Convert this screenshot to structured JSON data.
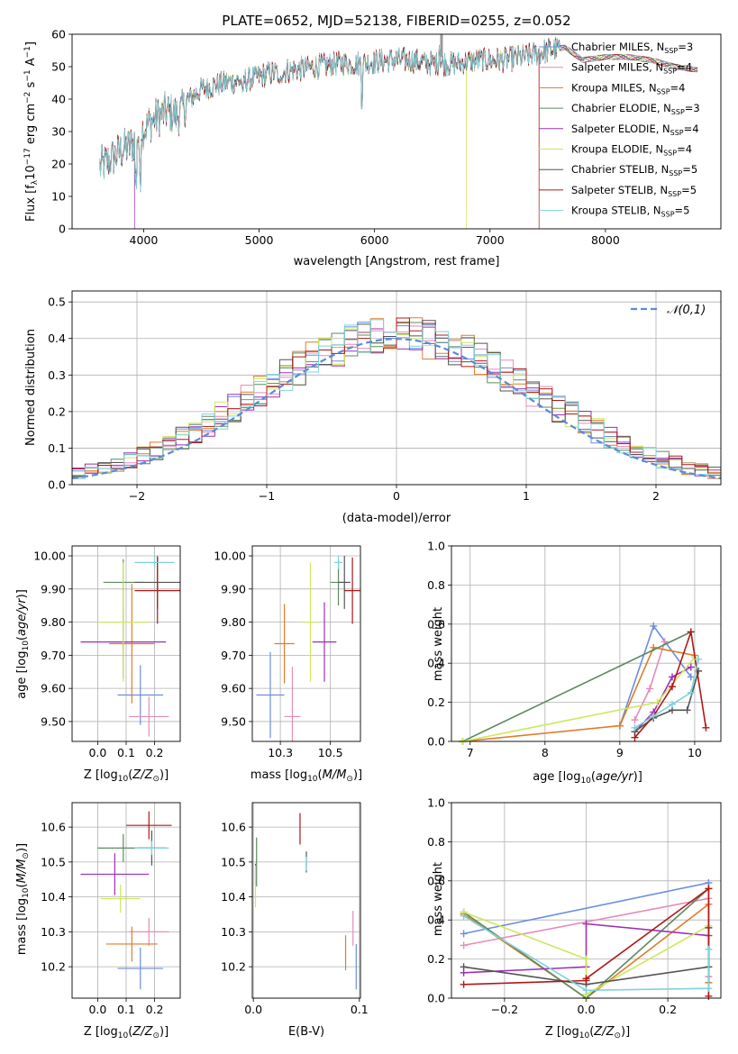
{
  "figure": {
    "title": "PLATE=0652, MJD=52138, FIBERID=0255, z=0.052"
  },
  "colors": {
    "Chabrier MILES": "#6a8fdc",
    "Salpeter MILES": "#e58bb9",
    "Kroupa MILES": "#e07b2a",
    "Chabrier ELODIE": "#5c8a60",
    "Salpeter ELODIE": "#9b30b8",
    "Kroupa ELODIE": "#cde85e",
    "Chabrier STELIB": "#555555",
    "Salpeter STELIB": "#b01818",
    "Kroupa STELIB": "#7fd2dc"
  },
  "chart_data": [
    {
      "id": "spectrum",
      "type": "line",
      "title": "PLATE=0652, MJD=52138, FIBERID=0255, z=0.052",
      "xlabel": "wavelength [Angstrom, rest frame]",
      "ylabel": "Flux [fλ10⁻¹⁷ erg cm⁻² s⁻¹ A⁻¹]",
      "xlim": [
        3380,
        9000
      ],
      "ylim": [
        0,
        60
      ],
      "xticks": [
        4000,
        5000,
        6000,
        7000,
        8000
      ],
      "yticks": [
        0,
        10,
        20,
        30,
        40,
        50,
        60
      ],
      "grid": false,
      "legend": "top-right",
      "legend_labels": [
        "Chabrier MILES, N_SSP=3",
        "Salpeter MILES, N_SSP=4",
        "Kroupa MILES, N_SSP=4",
        "Chabrier ELODIE, N_SSP=3",
        "Salpeter ELODIE, N_SSP=4",
        "Kroupa ELODIE, N_SSP=4",
        "Chabrier STELIB, N_SSP=5",
        "Salpeter STELIB, N_SSP=5",
        "Kroupa STELIB, N_SSP=5"
      ],
      "continuum": {
        "x": [
          3620,
          3700,
          3800,
          3900,
          4000,
          4100,
          4200,
          4300,
          4400,
          4500,
          4700,
          4900,
          5100,
          5300,
          5500,
          5700,
          5900,
          6100,
          6300,
          6500,
          6700,
          6900,
          7100,
          7300,
          7500,
          7650,
          7800,
          8000,
          8200,
          8400,
          8600,
          8800
        ],
        "y": [
          19,
          21,
          24,
          26,
          31,
          34,
          36,
          35,
          40,
          43,
          45,
          46,
          48,
          49,
          50,
          51,
          51,
          52,
          52,
          51,
          51,
          52,
          52,
          53,
          55,
          56,
          52,
          53,
          53,
          52,
          50,
          49
        ]
      },
      "drops": [
        {
          "series": "Salpeter ELODIE",
          "x": 3920,
          "y": 0
        },
        {
          "series": "Kroupa ELODIE",
          "x": 6790,
          "y": 0
        },
        {
          "series": "Salpeter STELIB",
          "x": 7420,
          "y": 0
        }
      ]
    },
    {
      "id": "residuals",
      "type": "histogram",
      "xlabel": "(data-model)/error",
      "ylabel": "Normed distribution",
      "xlim": [
        -2.5,
        2.5
      ],
      "ylim": [
        0,
        0.53
      ],
      "xticks": [
        -2,
        -1,
        0,
        1,
        2
      ],
      "yticks": [
        0.0,
        0.1,
        0.2,
        0.3,
        0.4,
        0.5
      ],
      "grid": true,
      "legend": "top-right",
      "reference_label": "𝒩(0,1)",
      "reference": "normal(0,1)"
    },
    {
      "id": "age_vs_Z",
      "type": "errorbar",
      "xlabel": "Z [log10(Z/Z☉)]",
      "ylabel": "age  [log10(age/yr)]",
      "xlim": [
        -0.09,
        0.29
      ],
      "ylim": [
        9.44,
        10.03
      ],
      "xticks": [
        0.0,
        0.1,
        0.2
      ],
      "yticks": [
        9.5,
        9.6,
        9.7,
        9.8,
        9.9,
        10.0
      ],
      "grid": true,
      "points": [
        {
          "series": "Chabrier MILES",
          "x": 0.15,
          "xerr": 0.08,
          "y": 9.58,
          "yerr": 0.09
        },
        {
          "series": "Salpeter MILES",
          "x": 0.18,
          "xerr": 0.07,
          "y": 9.515,
          "yerr": 0.06
        },
        {
          "series": "Kroupa MILES",
          "x": 0.12,
          "xerr": 0.08,
          "y": 9.735,
          "yerr": 0.18
        },
        {
          "series": "Chabrier ELODIE",
          "x": 0.09,
          "xerr": 0.07,
          "y": 9.92,
          "yerr": 0.07
        },
        {
          "series": "Salpeter ELODIE",
          "x": 0.09,
          "xerr": 0.15,
          "y": 9.74,
          "yerr": 0.11
        },
        {
          "series": "Kroupa ELODIE",
          "x": 0.09,
          "xerr": 0.09,
          "y": 9.8,
          "yerr": 0.18
        },
        {
          "series": "Chabrier STELIB",
          "x": 0.21,
          "xerr": 0.08,
          "y": 9.92,
          "yerr": 0.08
        },
        {
          "series": "Salpeter STELIB",
          "x": 0.21,
          "xerr": 0.08,
          "y": 9.895,
          "yerr": 0.1
        },
        {
          "series": "Kroupa STELIB",
          "x": 0.2,
          "xerr": 0.07,
          "y": 9.98,
          "yerr": 0.02
        }
      ]
    },
    {
      "id": "age_vs_mass",
      "type": "errorbar",
      "xlabel": "mass [log10(M/M☉)]",
      "ylabel": "",
      "xlim": [
        10.11,
        10.65
      ],
      "ylim": [
        9.44,
        10.03
      ],
      "xticks": [
        10.25,
        10.5
      ],
      "yticks": [
        9.5,
        9.6,
        9.7,
        9.8,
        9.9,
        10.0
      ],
      "grid": true,
      "points": [
        {
          "series": "Chabrier MILES",
          "x": 10.2,
          "xerr": 0.07,
          "y": 9.58,
          "yerr": 0.13
        },
        {
          "series": "Salpeter MILES",
          "x": 10.31,
          "xerr": 0.04,
          "y": 9.515,
          "yerr": 0.15
        },
        {
          "series": "Kroupa MILES",
          "x": 10.27,
          "xerr": 0.05,
          "y": 9.735,
          "yerr": 0.12
        },
        {
          "series": "Chabrier ELODIE",
          "x": 10.54,
          "xerr": 0.04,
          "y": 9.92,
          "yerr": 0.07
        },
        {
          "series": "Salpeter ELODIE",
          "x": 10.47,
          "xerr": 0.06,
          "y": 9.74,
          "yerr": 0.12
        },
        {
          "series": "Kroupa ELODIE",
          "x": 10.4,
          "xerr": 0.04,
          "y": 9.8,
          "yerr": 0.18
        },
        {
          "series": "Chabrier STELIB",
          "x": 10.57,
          "xerr": 0.03,
          "y": 9.92,
          "yerr": 0.08
        },
        {
          "series": "Salpeter STELIB",
          "x": 10.61,
          "xerr": 0.04,
          "y": 9.895,
          "yerr": 0.1
        },
        {
          "series": "Kroupa STELIB",
          "x": 10.54,
          "xerr": 0.02,
          "y": 9.98,
          "yerr": 0.02
        }
      ]
    },
    {
      "id": "mass_weight_vs_age",
      "type": "line",
      "xlabel": "age  [log10(age/yr)]",
      "ylabel": "mass weight",
      "xlim": [
        6.75,
        10.35
      ],
      "ylim": [
        0,
        1
      ],
      "xticks": [
        7,
        8,
        9,
        10
      ],
      "yticks": [
        0.0,
        0.2,
        0.4,
        0.6,
        0.8,
        1.0
      ],
      "grid": true,
      "series": [
        {
          "name": "Chabrier MILES",
          "x": [
            9.0,
            9.45,
            9.95
          ],
          "y": [
            0.08,
            0.59,
            0.33
          ]
        },
        {
          "name": "Salpeter MILES",
          "x": [
            9.2,
            9.4,
            9.6
          ],
          "y": [
            0.11,
            0.27,
            0.51
          ]
        },
        {
          "name": "Kroupa MILES",
          "x": [
            6.9,
            9.0,
            9.45,
            10.0
          ],
          "y": [
            0.0,
            0.08,
            0.48,
            0.44
          ]
        },
        {
          "name": "Chabrier ELODIE",
          "x": [
            6.9,
            9.95
          ],
          "y": [
            0.0,
            0.56
          ]
        },
        {
          "name": "Salpeter ELODIE",
          "x": [
            9.2,
            9.45,
            9.7,
            9.95
          ],
          "y": [
            0.05,
            0.15,
            0.33,
            0.38
          ]
        },
        {
          "name": "Kroupa ELODIE",
          "x": [
            6.9,
            9.5,
            10.0
          ],
          "y": [
            0.0,
            0.2,
            0.43
          ]
        },
        {
          "name": "Chabrier STELIB",
          "x": [
            9.2,
            9.45,
            9.7,
            9.9,
            10.05
          ],
          "y": [
            0.05,
            0.12,
            0.16,
            0.16,
            0.36
          ]
        },
        {
          "name": "Salpeter STELIB",
          "x": [
            9.2,
            9.45,
            9.7,
            9.95,
            10.15
          ],
          "y": [
            0.02,
            0.13,
            0.28,
            0.56,
            0.07
          ]
        },
        {
          "name": "Kroupa STELIB",
          "x": [
            9.2,
            9.45,
            9.7,
            9.95,
            10.05
          ],
          "y": [
            0.07,
            0.13,
            0.19,
            0.25,
            0.42
          ]
        }
      ]
    },
    {
      "id": "mass_vs_Z",
      "type": "errorbar",
      "xlabel": "Z [log10(Z/Z☉)]",
      "ylabel": "mass [log10(M/M☉)]",
      "xlim": [
        -0.09,
        0.29
      ],
      "ylim": [
        10.11,
        10.67
      ],
      "xticks": [
        0.0,
        0.1,
        0.2
      ],
      "yticks": [
        10.2,
        10.3,
        10.4,
        10.5,
        10.6
      ],
      "grid": true,
      "points": [
        {
          "series": "Chabrier MILES",
          "x": 0.15,
          "xerr": 0.08,
          "y": 10.195,
          "yerr": 0.06
        },
        {
          "series": "Salpeter MILES",
          "x": 0.18,
          "xerr": 0.07,
          "y": 10.3,
          "yerr": 0.04
        },
        {
          "series": "Kroupa MILES",
          "x": 0.12,
          "xerr": 0.09,
          "y": 10.265,
          "yerr": 0.05
        },
        {
          "series": "Chabrier ELODIE",
          "x": 0.09,
          "xerr": 0.09,
          "y": 10.54,
          "yerr": 0.04
        },
        {
          "series": "Salpeter ELODIE",
          "x": 0.06,
          "xerr": 0.12,
          "y": 10.465,
          "yerr": 0.06
        },
        {
          "series": "Kroupa ELODIE",
          "x": 0.08,
          "xerr": 0.07,
          "y": 10.395,
          "yerr": 0.04
        },
        {
          "series": "Chabrier STELIB",
          "x": 0.19,
          "xerr": 0.05,
          "y": 10.54,
          "yerr": 0.05
        },
        {
          "series": "Salpeter STELIB",
          "x": 0.18,
          "xerr": 0.08,
          "y": 10.605,
          "yerr": 0.04
        },
        {
          "series": "Kroupa STELIB",
          "x": 0.19,
          "xerr": 0.06,
          "y": 10.54,
          "yerr": 0.02
        }
      ]
    },
    {
      "id": "mass_vs_ebv",
      "type": "errorbar",
      "xlabel": "E(B-V)",
      "ylabel": "",
      "xlim": [
        -0.001,
        0.101
      ],
      "ylim": [
        10.11,
        10.67
      ],
      "xticks": [
        0.0,
        0.1
      ],
      "yticks": [
        10.2,
        10.3,
        10.4,
        10.5,
        10.6
      ],
      "grid": true,
      "points": [
        {
          "series": "Chabrier MILES",
          "x": 0.097,
          "y": 10.2,
          "yerr": 0.065
        },
        {
          "series": "Salpeter MILES",
          "x": 0.094,
          "y": 10.31,
          "yerr": 0.05
        },
        {
          "series": "Kroupa MILES",
          "x": 0.087,
          "y": 10.24,
          "yerr": 0.05
        },
        {
          "series": "Chabrier ELODIE",
          "x": 0.003,
          "y": 10.5,
          "yerr": 0.07
        },
        {
          "series": "Salpeter ELODIE",
          "x": 0.002,
          "y": 10.465,
          "yerr": 0.03
        },
        {
          "series": "Kroupa ELODIE",
          "x": 0.002,
          "y": 10.43,
          "yerr": 0.06
        },
        {
          "series": "Chabrier STELIB",
          "x": 0.05,
          "y": 10.5,
          "yerr": 0.03
        },
        {
          "series": "Salpeter STELIB",
          "x": 0.044,
          "y": 10.595,
          "yerr": 0.045
        },
        {
          "series": "Kroupa STELIB",
          "x": 0.05,
          "y": 10.495,
          "yerr": 0.02
        }
      ]
    },
    {
      "id": "mass_weight_vs_Z",
      "type": "line",
      "xlabel": "Z [log10(Z/Z☉)]",
      "ylabel": "mass weight",
      "xlim": [
        -0.33,
        0.33
      ],
      "ylim": [
        0,
        1
      ],
      "xticks": [
        -0.2,
        0.0,
        0.2
      ],
      "yticks": [
        0.0,
        0.2,
        0.4,
        0.6,
        0.8,
        1.0
      ],
      "grid": true,
      "series": [
        {
          "name": "Chabrier MILES",
          "x": [
            -0.3,
            0.3,
            0.3
          ],
          "y": [
            0.33,
            0.59,
            0.08
          ]
        },
        {
          "name": "Salpeter MILES",
          "x": [
            -0.3,
            0.3,
            0.3
          ],
          "y": [
            0.27,
            0.51,
            0.11
          ]
        },
        {
          "name": "Kroupa MILES",
          "x": [
            -0.3,
            0.0,
            0.3,
            0.3
          ],
          "y": [
            0.43,
            0.0,
            0.48,
            0.08
          ]
        },
        {
          "name": "Chabrier ELODIE",
          "x": [
            -0.3,
            0.0,
            0.3
          ],
          "y": [
            0.44,
            0.0,
            0.56
          ]
        },
        {
          "name": "Salpeter ELODIE",
          "x": [
            -0.3,
            0.0,
            0.0,
            0.3
          ],
          "y": [
            0.13,
            0.16,
            0.38,
            0.32
          ]
        },
        {
          "name": "Kroupa ELODIE",
          "x": [
            -0.3,
            0.0,
            0.0,
            0.3
          ],
          "y": [
            0.44,
            0.2,
            0.02,
            0.37
          ]
        },
        {
          "name": "Chabrier STELIB",
          "x": [
            -0.3,
            0.0,
            0.3,
            0.3
          ],
          "y": [
            0.16,
            0.07,
            0.16,
            0.36
          ]
        },
        {
          "name": "Salpeter STELIB",
          "x": [
            -0.3,
            0.0,
            0.0,
            0.3,
            0.3
          ],
          "y": [
            0.07,
            0.09,
            0.1,
            0.56,
            0.01
          ]
        },
        {
          "name": "Kroupa STELIB",
          "x": [
            -0.3,
            0.0,
            0.3,
            0.3
          ],
          "y": [
            0.42,
            0.04,
            0.05,
            0.25
          ]
        }
      ]
    }
  ]
}
